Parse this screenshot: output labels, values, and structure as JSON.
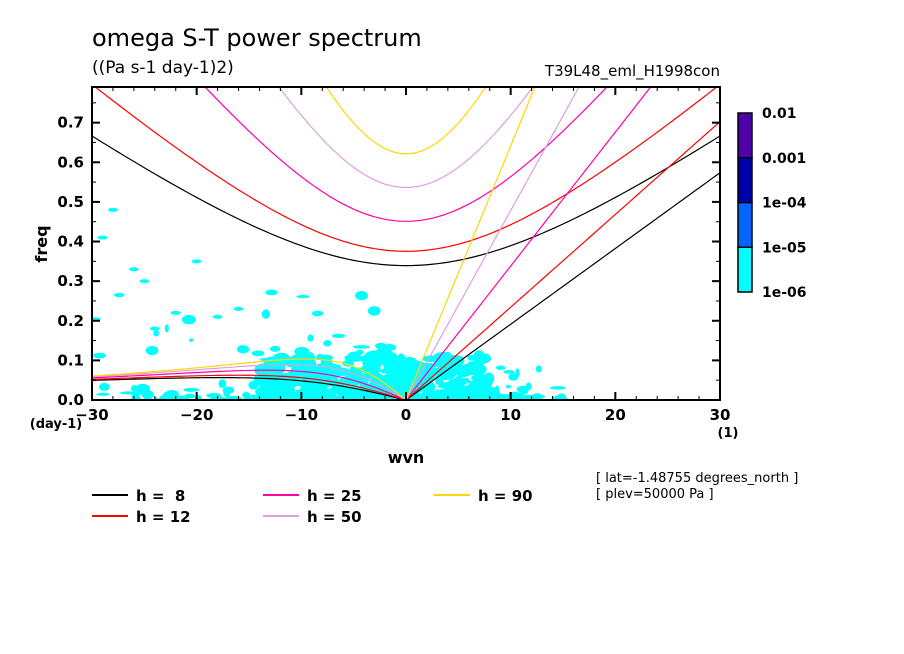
{
  "chart_data": {
    "type": "heatmap",
    "title": "omega S-T power spectrum",
    "subtitle": "((Pa s-1 day-1)2)",
    "run_label": "T39L48_eml_H1998con",
    "xlabel": "wvn",
    "xunit": "(1)",
    "ylabel": "freq",
    "yunit": "(day-1)",
    "xlim": [
      -30,
      30
    ],
    "ylim": [
      0,
      0.79
    ],
    "xticks": [
      -30,
      -20,
      -10,
      0,
      10,
      20,
      30
    ],
    "xtick_labels": [
      "−30",
      "−20",
      "−10",
      "0",
      "10",
      "20",
      "30"
    ],
    "yticks": [
      0.0,
      0.1,
      0.2,
      0.3,
      0.4,
      0.5,
      0.6,
      0.7
    ],
    "ytick_labels": [
      "0.0",
      "0.1",
      "0.2",
      "0.3",
      "0.4",
      "0.5",
      "0.6",
      "0.7"
    ],
    "grid": false,
    "colorbar": {
      "levels": [
        "1e-06",
        "1e-05",
        "1e-04",
        "0.001",
        "0.01"
      ],
      "colors": [
        "#00ffff",
        "#0066ff",
        "#0000aa",
        "#5000a8"
      ],
      "placement": "right"
    },
    "shaded_regions_note": "Power between 1e-06 and 1e-05 (cyan) concentrated at low frequency (<0.15 day-1) near wvn -15..+10, with scattered patches up to 0.48 day-1 on the westward side",
    "dispersion_curves": {
      "kinds": [
        "Kelvin",
        "Rossby n=1",
        "Inertia-gravity n=1"
      ],
      "series": [
        {
          "name": "h =  8",
          "h": 8,
          "color": "#000000"
        },
        {
          "name": "h = 12",
          "h": 12,
          "color": "#ff0000"
        },
        {
          "name": "h = 25",
          "h": 25,
          "color": "#ff00aa"
        },
        {
          "name": "h = 50",
          "h": 50,
          "color": "#dda0dd"
        },
        {
          "name": "h = 90",
          "h": 90,
          "color": "#ffd700"
        }
      ]
    },
    "legend": {
      "placement": "bottom",
      "items": [
        {
          "label": "h =  8",
          "color": "#000000"
        },
        {
          "label": "h = 12",
          "color": "#ff0000"
        },
        {
          "label": "h = 25",
          "color": "#ff00aa"
        },
        {
          "label": "h = 50",
          "color": "#dda0dd"
        },
        {
          "label": "h = 90",
          "color": "#ffd700"
        }
      ]
    },
    "annotations": [
      "[ lat=-1.48755 degrees_north ]",
      "[ plev=50000 Pa ]"
    ]
  }
}
